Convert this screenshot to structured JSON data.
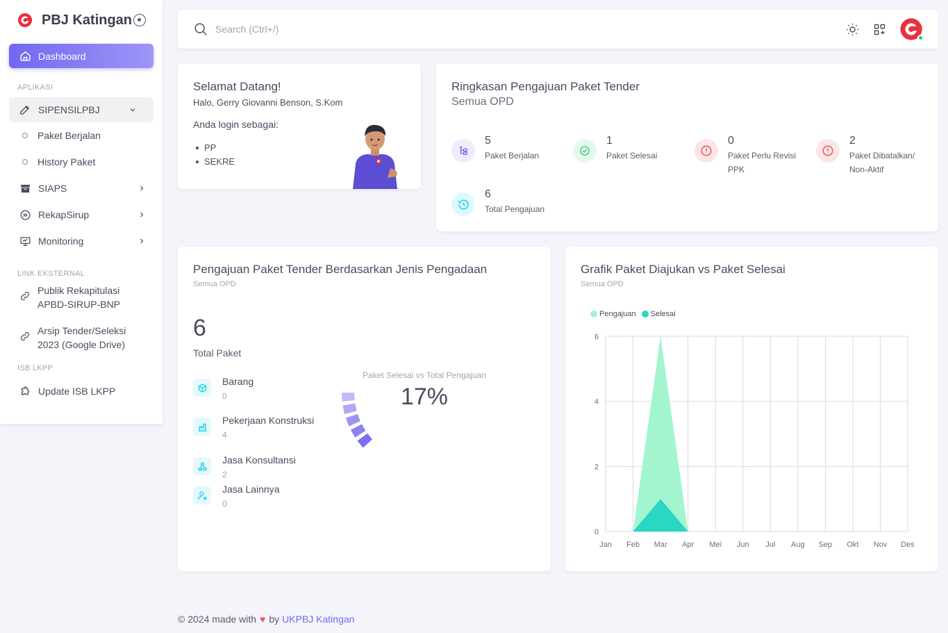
{
  "brand": {
    "title": "PBJ Katingan"
  },
  "nav": {
    "dashboard": "Dashboard",
    "section_aplikasi": "APLIKASI",
    "sipensilpbj": "SIPENSILPBJ",
    "paket_berjalan": "Paket Berjalan",
    "history_paket": "History Paket",
    "siaps": "SIAPS",
    "rekapsirup": "RekapSirup",
    "monitoring": "Monitoring",
    "section_link": "LINK EKSTERNAL",
    "link1_line1": "Publik Rekapitulasi",
    "link1_line2": "APBD-SIRUP-BNP",
    "link2_line1": "Arsip Tender/Seleksi",
    "link2_line2": "2023 (Google Drive)",
    "section_isb": "ISB LKPP",
    "update_isb": "Update ISB LKPP"
  },
  "search": {
    "placeholder": "Search (Ctrl+/)"
  },
  "welcome": {
    "title": "Selamat Datang!",
    "greeting": "Halo, Gerry Giovanni Benson, S.Kom",
    "login_as": "Anda login sebagai:",
    "roles": [
      "PP",
      "SEKRE"
    ]
  },
  "ringkasan": {
    "title": "Ringkasan Pengajuan Paket Tender",
    "subtitle": "Semua OPD",
    "stats": [
      {
        "value": "5",
        "label1": "Paket Berjalan",
        "label2": "",
        "icon": "tree-list-icon",
        "color": "#7367f0",
        "bg": "#eeedfd"
      },
      {
        "value": "1",
        "label1": "Paket Selesai",
        "label2": "",
        "icon": "check-circle-icon",
        "color": "#28c76f",
        "bg": "#e5f8ed"
      },
      {
        "value": "0",
        "label1": "Paket Perlu Revisi",
        "label2": "PPK",
        "icon": "alert-circle-icon",
        "color": "#ea5455",
        "bg": "#fce5e6"
      },
      {
        "value": "2",
        "label1": "Paket Dibatalkan/",
        "label2": "Non-Aktif",
        "icon": "alert-circle-icon",
        "color": "#ea5455",
        "bg": "#fce5e6"
      },
      {
        "value": "6",
        "label1": "Total Pengajuan",
        "label2": "",
        "icon": "history-icon",
        "color": "#00cfe8",
        "bg": "#e0f9fc"
      }
    ]
  },
  "jenis": {
    "title": "Pengajuan Paket Tender Berdasarkan Jenis Pengadaan",
    "subtitle": "Semua OPD",
    "total": "6",
    "total_label": "Total Paket",
    "items": [
      {
        "name": "Barang",
        "value": "0",
        "icon": "box-icon"
      },
      {
        "name": "Pekerjaan Konstruksi",
        "value": "4",
        "icon": "building-icon"
      },
      {
        "name": "Jasa Konsultansi",
        "value": "2",
        "icon": "network-icon"
      },
      {
        "name": "Jasa Lainnya",
        "value": "0",
        "icon": "user-gear-icon"
      }
    ],
    "gauge_title": "Paket Selesai vs Total Pengajuan",
    "gauge_value": "17%",
    "gauge_percent": 17,
    "gauge_color": "#7367f0"
  },
  "grafik": {
    "title": "Grafik Paket Diajukan vs Paket Selesai",
    "subtitle": "Semua OPD"
  },
  "chart_data": {
    "type": "area",
    "categories": [
      "Jan",
      "Feb",
      "Mar",
      "Apr",
      "Mei",
      "Jun",
      "Jul",
      "Aug",
      "Sep",
      "Okt",
      "Nov",
      "Des"
    ],
    "series": [
      {
        "name": "Pengajuan",
        "values": [
          0,
          0,
          6,
          0,
          0,
          0,
          0,
          0,
          0,
          0,
          0,
          0
        ],
        "color": "#a3f5cf"
      },
      {
        "name": "Selesai",
        "values": [
          0,
          0,
          1,
          0,
          0,
          0,
          0,
          0,
          0,
          0,
          0,
          0
        ],
        "color": "#2ad6c4"
      }
    ],
    "ylim": [
      0,
      6
    ],
    "yticks": [
      "0",
      "2",
      "4",
      "6"
    ],
    "grid": true,
    "legend": "top-left"
  },
  "footer": {
    "prefix": "© 2024 made with",
    "by": "by",
    "link": "UKPBJ Katingan"
  }
}
